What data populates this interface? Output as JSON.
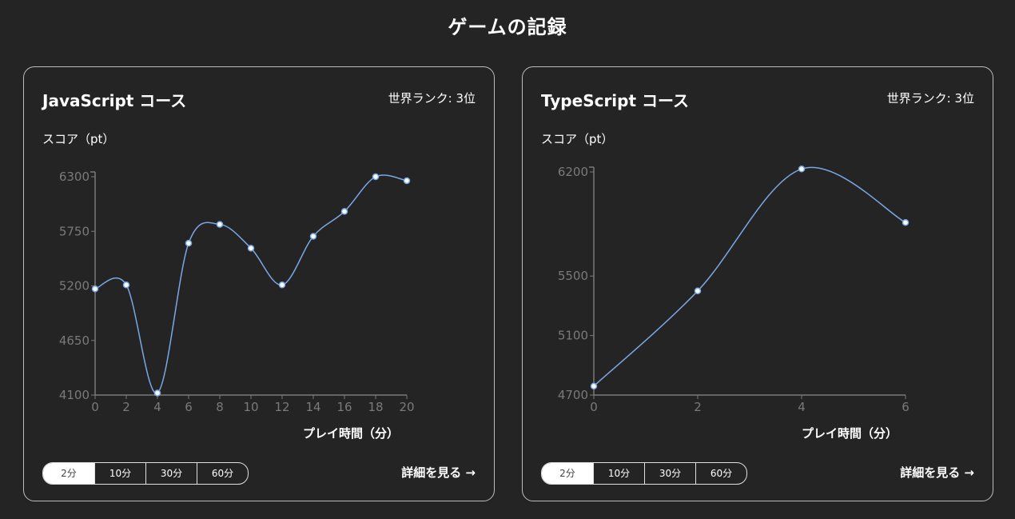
{
  "page": {
    "title": "ゲームの記録"
  },
  "cards": [
    {
      "title": "JavaScript コース",
      "rank": "世界ランク: 3位",
      "ylabel": "スコア（pt）",
      "xlabel": "プレイ時間（分）",
      "ranges": [
        "2分",
        "10分",
        "30分",
        "60分"
      ],
      "active_range": "2分",
      "detail": "詳細を見る →"
    },
    {
      "title": "TypeScript コース",
      "rank": "世界ランク: 3位",
      "ylabel": "スコア（pt）",
      "xlabel": "プレイ時間（分）",
      "ranges": [
        "2分",
        "10分",
        "30分",
        "60分"
      ],
      "active_range": "2分",
      "detail": "詳細を見る →"
    }
  ],
  "colors": {
    "background": "#232423",
    "line": "#7aa8e6",
    "axis": "#7a7a7a"
  },
  "chart_data": [
    {
      "type": "line",
      "xlabel": "プレイ時間（分）",
      "ylabel": "スコア（pt）",
      "x": [
        0,
        2,
        4,
        6,
        8,
        10,
        12,
        14,
        16,
        18,
        20
      ],
      "series": [
        {
          "values": [
            5170,
            5210,
            4120,
            5630,
            5820,
            5580,
            5210,
            5700,
            5950,
            6300,
            6260
          ]
        }
      ],
      "xticks": [
        0,
        2,
        4,
        6,
        8,
        10,
        12,
        14,
        16,
        18,
        20
      ],
      "yticks": [
        4100,
        4650,
        5200,
        5750,
        6300
      ],
      "xlim": [
        0,
        20
      ],
      "ylim": [
        4100,
        6300
      ],
      "grid": false
    },
    {
      "type": "line",
      "xlabel": "プレイ時間（分）",
      "ylabel": "スコア（pt）",
      "x": [
        0,
        2,
        4,
        6
      ],
      "series": [
        {
          "values": [
            4760,
            5400,
            6220,
            5860
          ]
        }
      ],
      "xticks": [
        0,
        2,
        4,
        6
      ],
      "yticks": [
        4700,
        5100,
        5500,
        6200
      ],
      "xlim": [
        0,
        6
      ],
      "ylim": [
        4700,
        6200
      ],
      "grid": false
    }
  ]
}
